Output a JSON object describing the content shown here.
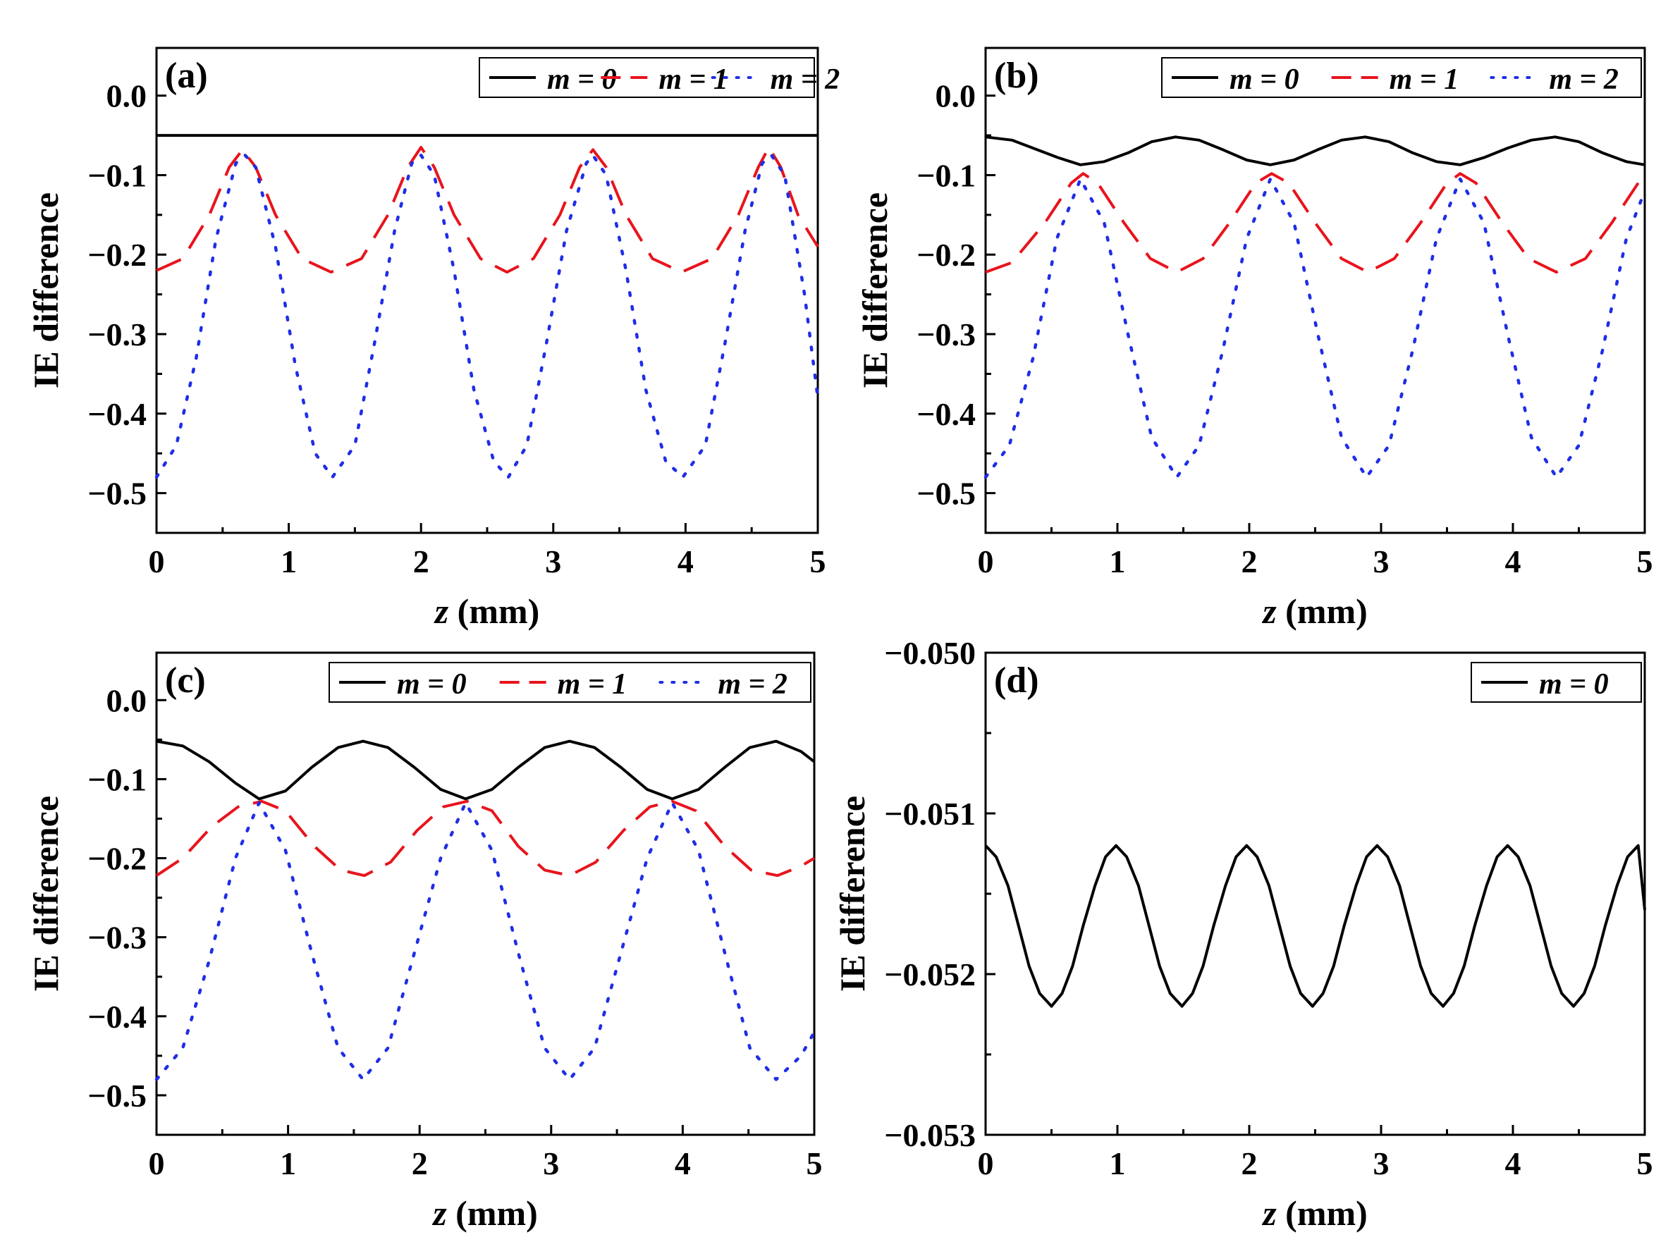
{
  "colors": {
    "m0": "#000000",
    "m1": "#e8141c",
    "m2": "#1f2ee6"
  },
  "chart_data": [
    {
      "type": "line",
      "panel": "(a)",
      "xlabel_italic": "z",
      "xlabel_rest": " (mm)",
      "ylabel": "IE difference",
      "xlim": [
        0,
        5
      ],
      "ylim": [
        -0.55,
        0.06
      ],
      "xticks": [
        0,
        1,
        2,
        3,
        4,
        5
      ],
      "xtick_labels": [
        "0",
        "1",
        "2",
        "3",
        "4",
        "5"
      ],
      "yticks": [
        0.0,
        -0.1,
        -0.2,
        -0.3,
        -0.4,
        -0.5
      ],
      "ytick_labels": [
        "0.0",
        "−0.1",
        "−0.2",
        "−0.3",
        "−0.4",
        "−0.5"
      ],
      "legend_position": "top-right",
      "series": [
        {
          "name": "m = 0",
          "m": "0",
          "style": "solid",
          "x": [
            0,
            5
          ],
          "y": [
            -0.05,
            -0.05
          ]
        },
        {
          "name": "m = 1",
          "m": "1",
          "style": "dashed",
          "x": [
            0,
            0.2,
            0.4,
            0.55,
            0.65,
            0.75,
            0.9,
            1.1,
            1.32,
            1.55,
            1.75,
            1.9,
            2.0,
            2.1,
            2.25,
            2.45,
            2.65,
            2.85,
            3.05,
            3.2,
            3.3,
            3.4,
            3.55,
            3.75,
            3.97,
            4.2,
            4.4,
            4.55,
            4.63,
            4.72,
            4.85,
            5.0
          ],
          "y": [
            -0.22,
            -0.205,
            -0.15,
            -0.09,
            -0.068,
            -0.09,
            -0.15,
            -0.205,
            -0.222,
            -0.205,
            -0.15,
            -0.09,
            -0.065,
            -0.09,
            -0.15,
            -0.205,
            -0.222,
            -0.205,
            -0.15,
            -0.09,
            -0.068,
            -0.09,
            -0.15,
            -0.205,
            -0.222,
            -0.205,
            -0.15,
            -0.09,
            -0.065,
            -0.09,
            -0.15,
            -0.19
          ]
        },
        {
          "name": "m = 2",
          "m": "2",
          "style": "dotted",
          "x": [
            0,
            0.15,
            0.3,
            0.45,
            0.6,
            0.67,
            0.75,
            0.9,
            1.05,
            1.2,
            1.33,
            1.5,
            1.65,
            1.8,
            1.93,
            2.0,
            2.1,
            2.25,
            2.4,
            2.55,
            2.66,
            2.8,
            2.95,
            3.1,
            3.25,
            3.3,
            3.4,
            3.55,
            3.7,
            3.85,
            3.98,
            4.15,
            4.3,
            4.45,
            4.58,
            4.65,
            4.75,
            4.9,
            5.0
          ],
          "y": [
            -0.48,
            -0.44,
            -0.33,
            -0.18,
            -0.085,
            -0.075,
            -0.09,
            -0.19,
            -0.34,
            -0.45,
            -0.48,
            -0.44,
            -0.31,
            -0.17,
            -0.085,
            -0.075,
            -0.1,
            -0.22,
            -0.37,
            -0.46,
            -0.48,
            -0.44,
            -0.31,
            -0.17,
            -0.085,
            -0.075,
            -0.1,
            -0.22,
            -0.37,
            -0.46,
            -0.48,
            -0.44,
            -0.31,
            -0.17,
            -0.085,
            -0.075,
            -0.1,
            -0.25,
            -0.38
          ]
        }
      ]
    },
    {
      "type": "line",
      "panel": "(b)",
      "xlabel_italic": "z",
      "xlabel_rest": " (mm)",
      "ylabel": "IE difference",
      "xlim": [
        0,
        5
      ],
      "ylim": [
        -0.55,
        0.06
      ],
      "xticks": [
        0,
        1,
        2,
        3,
        4,
        5
      ],
      "xtick_labels": [
        "0",
        "1",
        "2",
        "3",
        "4",
        "5"
      ],
      "yticks": [
        0.0,
        -0.1,
        -0.2,
        -0.3,
        -0.4,
        -0.5
      ],
      "ytick_labels": [
        "0.0",
        "−0.1",
        "−0.2",
        "−0.3",
        "−0.4",
        "−0.5"
      ],
      "legend_position": "top-right",
      "series": [
        {
          "name": "m = 0",
          "m": "0",
          "style": "solid",
          "x": [
            0,
            0.2,
            0.36,
            0.55,
            0.72,
            0.9,
            1.08,
            1.26,
            1.44,
            1.62,
            1.8,
            1.98,
            2.16,
            2.34,
            2.52,
            2.7,
            2.88,
            3.06,
            3.24,
            3.42,
            3.6,
            3.78,
            3.96,
            4.14,
            4.32,
            4.5,
            4.68,
            4.86,
            5.0
          ],
          "y": [
            -0.052,
            -0.056,
            -0.066,
            -0.078,
            -0.087,
            -0.083,
            -0.072,
            -0.058,
            -0.052,
            -0.056,
            -0.068,
            -0.081,
            -0.087,
            -0.081,
            -0.068,
            -0.056,
            -0.052,
            -0.058,
            -0.072,
            -0.083,
            -0.087,
            -0.078,
            -0.066,
            -0.056,
            -0.052,
            -0.058,
            -0.072,
            -0.083,
            -0.087
          ]
        },
        {
          "name": "m = 1",
          "m": "1",
          "style": "dashed",
          "x": [
            0,
            0.2,
            0.45,
            0.65,
            0.74,
            0.85,
            1.05,
            1.25,
            1.45,
            1.65,
            1.85,
            2.05,
            2.17,
            2.3,
            2.5,
            2.7,
            2.9,
            3.1,
            3.3,
            3.5,
            3.6,
            3.72,
            3.92,
            4.12,
            4.33,
            4.55,
            4.75,
            4.95,
            5.0
          ],
          "y": [
            -0.222,
            -0.21,
            -0.16,
            -0.11,
            -0.098,
            -0.11,
            -0.16,
            -0.205,
            -0.222,
            -0.205,
            -0.16,
            -0.11,
            -0.098,
            -0.11,
            -0.16,
            -0.205,
            -0.222,
            -0.205,
            -0.16,
            -0.11,
            -0.098,
            -0.11,
            -0.16,
            -0.205,
            -0.222,
            -0.205,
            -0.16,
            -0.11,
            -0.098
          ]
        },
        {
          "name": "m = 2",
          "m": "2",
          "style": "dotted",
          "x": [
            0,
            0.18,
            0.36,
            0.54,
            0.72,
            0.9,
            1.08,
            1.26,
            1.45,
            1.62,
            1.8,
            1.98,
            2.16,
            2.34,
            2.52,
            2.7,
            2.89,
            3.06,
            3.24,
            3.42,
            3.6,
            3.78,
            3.96,
            4.14,
            4.33,
            4.5,
            4.68,
            4.86,
            5.0
          ],
          "y": [
            -0.48,
            -0.44,
            -0.33,
            -0.18,
            -0.105,
            -0.16,
            -0.3,
            -0.43,
            -0.48,
            -0.44,
            -0.32,
            -0.18,
            -0.105,
            -0.16,
            -0.3,
            -0.43,
            -0.48,
            -0.44,
            -0.32,
            -0.18,
            -0.105,
            -0.16,
            -0.3,
            -0.43,
            -0.48,
            -0.44,
            -0.32,
            -0.18,
            -0.12
          ]
        }
      ]
    },
    {
      "type": "line",
      "panel": "(c)",
      "xlabel_italic": "z",
      "xlabel_rest": " (mm)",
      "ylabel": "IE difference",
      "xlim": [
        0,
        5
      ],
      "ylim": [
        -0.55,
        0.06
      ],
      "xticks": [
        0,
        1,
        2,
        3,
        4,
        5
      ],
      "xtick_labels": [
        "0",
        "1",
        "2",
        "3",
        "4",
        "5"
      ],
      "yticks": [
        0.0,
        -0.1,
        -0.2,
        -0.3,
        -0.4,
        -0.5
      ],
      "ytick_labels": [
        "0.0",
        "−0.1",
        "−0.2",
        "−0.3",
        "−0.4",
        "−0.5"
      ],
      "legend_position": "top-right",
      "series": [
        {
          "name": "m = 0",
          "m": "0",
          "style": "solid",
          "x": [
            0,
            0.2,
            0.4,
            0.6,
            0.78,
            0.98,
            1.18,
            1.38,
            1.57,
            1.76,
            1.96,
            2.16,
            2.35,
            2.55,
            2.75,
            2.95,
            3.14,
            3.33,
            3.53,
            3.73,
            3.92,
            4.12,
            4.32,
            4.51,
            4.71,
            4.9,
            5.0
          ],
          "y": [
            -0.052,
            -0.058,
            -0.078,
            -0.105,
            -0.125,
            -0.115,
            -0.085,
            -0.06,
            -0.052,
            -0.06,
            -0.085,
            -0.113,
            -0.125,
            -0.113,
            -0.085,
            -0.06,
            -0.052,
            -0.06,
            -0.085,
            -0.113,
            -0.125,
            -0.113,
            -0.085,
            -0.06,
            -0.052,
            -0.065,
            -0.078
          ]
        },
        {
          "name": "m = 1",
          "m": "1",
          "style": "dashed",
          "x": [
            0,
            0.2,
            0.42,
            0.62,
            0.8,
            0.98,
            1.2,
            1.4,
            1.58,
            1.78,
            1.98,
            2.18,
            2.36,
            2.55,
            2.75,
            2.95,
            3.14,
            3.34,
            3.55,
            3.75,
            3.92,
            4.1,
            4.32,
            4.52,
            4.72,
            4.9,
            5.0
          ],
          "y": [
            -0.222,
            -0.2,
            -0.16,
            -0.135,
            -0.128,
            -0.14,
            -0.185,
            -0.215,
            -0.222,
            -0.205,
            -0.165,
            -0.135,
            -0.128,
            -0.14,
            -0.185,
            -0.215,
            -0.222,
            -0.205,
            -0.165,
            -0.135,
            -0.128,
            -0.14,
            -0.185,
            -0.215,
            -0.222,
            -0.21,
            -0.2
          ]
        },
        {
          "name": "m = 2",
          "m": "2",
          "style": "dotted",
          "x": [
            0,
            0.2,
            0.4,
            0.6,
            0.78,
            0.98,
            1.18,
            1.38,
            1.57,
            1.76,
            1.96,
            2.16,
            2.35,
            2.55,
            2.75,
            2.95,
            3.14,
            3.33,
            3.53,
            3.73,
            3.92,
            4.12,
            4.32,
            4.51,
            4.71,
            4.9,
            5.0
          ],
          "y": [
            -0.48,
            -0.44,
            -0.33,
            -0.2,
            -0.13,
            -0.19,
            -0.32,
            -0.44,
            -0.48,
            -0.44,
            -0.32,
            -0.2,
            -0.13,
            -0.19,
            -0.32,
            -0.44,
            -0.48,
            -0.44,
            -0.32,
            -0.2,
            -0.13,
            -0.19,
            -0.32,
            -0.44,
            -0.48,
            -0.45,
            -0.42
          ]
        }
      ]
    },
    {
      "type": "line",
      "panel": "(d)",
      "xlabel_italic": "z",
      "xlabel_rest": " (mm)",
      "ylabel": "IE difference",
      "xlim": [
        0,
        5
      ],
      "ylim": [
        -0.053,
        -0.05
      ],
      "xticks": [
        0,
        1,
        2,
        3,
        4,
        5
      ],
      "xtick_labels": [
        "0",
        "1",
        "2",
        "3",
        "4",
        "5"
      ],
      "yticks": [
        -0.05,
        -0.051,
        -0.052,
        -0.053
      ],
      "ytick_labels": [
        "−0.050",
        "−0.051",
        "−0.052",
        "−0.053"
      ],
      "legend_position": "top-right",
      "series": [
        {
          "name": "m = 0",
          "m": "0",
          "style": "solid",
          "x": [
            0,
            0.08,
            0.17,
            0.25,
            0.33,
            0.41,
            0.5,
            0.58,
            0.66,
            0.74,
            0.83,
            0.91,
            0.99,
            1.07,
            1.16,
            1.24,
            1.32,
            1.4,
            1.49,
            1.57,
            1.65,
            1.73,
            1.82,
            1.9,
            1.98,
            2.06,
            2.15,
            2.23,
            2.31,
            2.39,
            2.48,
            2.56,
            2.64,
            2.72,
            2.81,
            2.89,
            2.97,
            3.05,
            3.14,
            3.22,
            3.3,
            3.38,
            3.47,
            3.55,
            3.63,
            3.71,
            3.8,
            3.88,
            3.96,
            4.04,
            4.13,
            4.21,
            4.29,
            4.37,
            4.46,
            4.54,
            4.62,
            4.7,
            4.79,
            4.87,
            4.95,
            5.0
          ],
          "y": [
            -0.0512,
            -0.05127,
            -0.05145,
            -0.0517,
            -0.05195,
            -0.05212,
            -0.0522,
            -0.05212,
            -0.05195,
            -0.0517,
            -0.05145,
            -0.05127,
            -0.0512,
            -0.05127,
            -0.05145,
            -0.0517,
            -0.05195,
            -0.05212,
            -0.0522,
            -0.05212,
            -0.05195,
            -0.0517,
            -0.05145,
            -0.05127,
            -0.0512,
            -0.05127,
            -0.05145,
            -0.0517,
            -0.05195,
            -0.05212,
            -0.0522,
            -0.05212,
            -0.05195,
            -0.0517,
            -0.05145,
            -0.05127,
            -0.0512,
            -0.05127,
            -0.05145,
            -0.0517,
            -0.05195,
            -0.05212,
            -0.0522,
            -0.05212,
            -0.05195,
            -0.0517,
            -0.05145,
            -0.05127,
            -0.0512,
            -0.05127,
            -0.05145,
            -0.0517,
            -0.05195,
            -0.05212,
            -0.0522,
            -0.05212,
            -0.05195,
            -0.0517,
            -0.05145,
            -0.05127,
            -0.0512,
            -0.0516
          ]
        }
      ]
    }
  ]
}
